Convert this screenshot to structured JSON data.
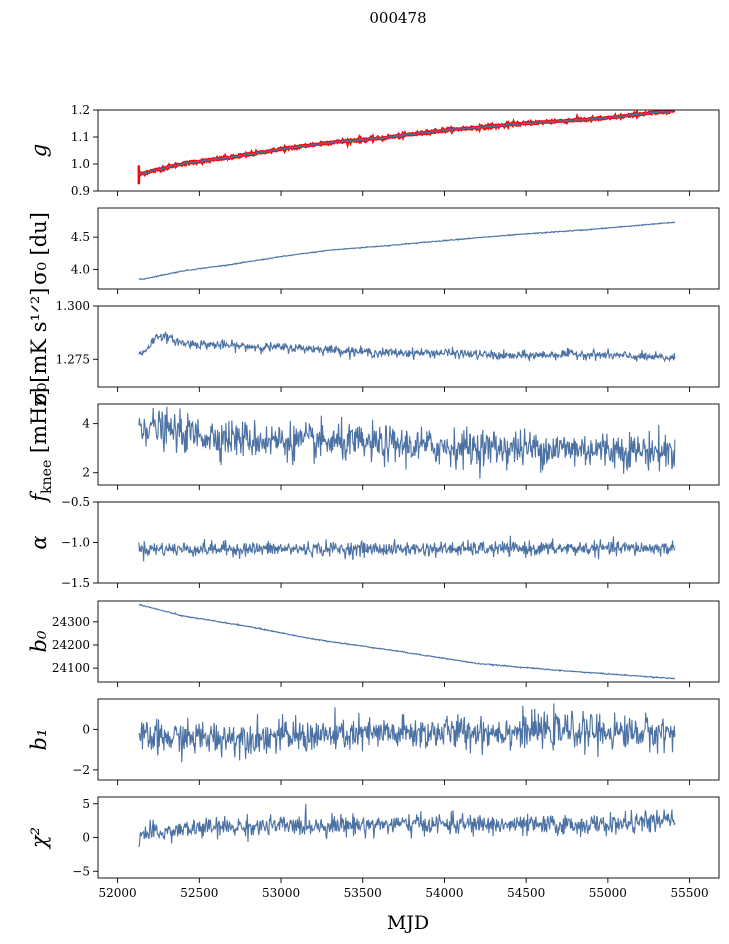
{
  "figure": {
    "suptitle": "000478"
  },
  "chart_data": {
    "type": "line",
    "xlabel": "MJD",
    "xlim": [
      51880,
      55680
    ],
    "xticks": [
      "52000",
      "52500",
      "53000",
      "53500",
      "54000",
      "54500",
      "55000",
      "55500"
    ],
    "xtick_values": [
      52000,
      52500,
      53000,
      53500,
      54000,
      54500,
      55000,
      55500
    ],
    "x_range_data": [
      52130,
      55410
    ],
    "colors": {
      "series": "#4c72a4",
      "highlight": "#ff0000",
      "axis": "#000000"
    },
    "panels": [
      {
        "id": "g",
        "ylabel_base": "g",
        "ylabel_sub": "",
        "ylim": [
          0.9,
          1.2
        ],
        "yticks": [
          "0.9",
          "1.0",
          "1.1",
          "1.2"
        ],
        "ytick_values": [
          0.9,
          1.0,
          1.1,
          1.2
        ],
        "highlight": true,
        "trend": [
          [
            52130,
            0.962
          ],
          [
            52400,
            1.002
          ],
          [
            52700,
            1.025
          ],
          [
            53000,
            1.055
          ],
          [
            53300,
            1.08
          ],
          [
            53600,
            1.095
          ],
          [
            54000,
            1.125
          ],
          [
            54300,
            1.14
          ],
          [
            54600,
            1.155
          ],
          [
            55000,
            1.17
          ],
          [
            55200,
            1.185
          ],
          [
            55410,
            1.198
          ]
        ],
        "noise": 0.002
      },
      {
        "id": "sigma0_du",
        "ylabel_base": "σ₀ [du]",
        "ylabel_sub": "",
        "ylim": [
          3.7,
          4.95
        ],
        "yticks": [
          "4.0",
          "4.5"
        ],
        "ytick_values": [
          4.0,
          4.5
        ],
        "highlight": false,
        "trend": [
          [
            52150,
            3.85
          ],
          [
            52400,
            3.98
          ],
          [
            52700,
            4.08
          ],
          [
            53000,
            4.2
          ],
          [
            53300,
            4.3
          ],
          [
            53700,
            4.38
          ],
          [
            54100,
            4.47
          ],
          [
            54500,
            4.55
          ],
          [
            54900,
            4.62
          ],
          [
            55410,
            4.73
          ]
        ],
        "noise": 0.004
      },
      {
        "id": "sigma0_mk",
        "ylabel_base": "σ₀[mK s¹ᐟ²]",
        "ylabel_sub": "",
        "ylim": [
          1.262,
          1.3
        ],
        "yticks": [
          "1.275",
          "1.300"
        ],
        "ytick_values": [
          1.275,
          1.3
        ],
        "highlight": false,
        "trend": [
          [
            52150,
            1.2776
          ],
          [
            52250,
            1.2865
          ],
          [
            52400,
            1.2825
          ],
          [
            52800,
            1.281
          ],
          [
            53200,
            1.28
          ],
          [
            53600,
            1.278
          ],
          [
            54000,
            1.278
          ],
          [
            54400,
            1.2765
          ],
          [
            54800,
            1.2775
          ],
          [
            55410,
            1.2755
          ]
        ],
        "noise": 0.0011
      },
      {
        "id": "fknee",
        "ylabel_base": "f_knee [mHz]",
        "ylabel_sub": "knee",
        "ylim": [
          1.5,
          4.8
        ],
        "yticks": [
          "2",
          "4"
        ],
        "ytick_values": [
          2,
          4
        ],
        "highlight": false,
        "trend": [
          [
            52150,
            3.95
          ],
          [
            52400,
            3.6
          ],
          [
            52800,
            3.35
          ],
          [
            53200,
            3.25
          ],
          [
            53600,
            3.15
          ],
          [
            54000,
            3.05
          ],
          [
            54500,
            3.0
          ],
          [
            55000,
            2.95
          ],
          [
            55410,
            2.85
          ]
        ],
        "noise": 0.38
      },
      {
        "id": "alpha",
        "ylabel_base": "α",
        "ylabel_sub": "",
        "ylim": [
          -1.5,
          -0.5
        ],
        "yticks": [
          "−1.5",
          "−1.0",
          "−0.5"
        ],
        "ytick_values": [
          -1.5,
          -1.0,
          -0.5
        ],
        "highlight": false,
        "trend": [
          [
            52150,
            -1.08
          ],
          [
            53000,
            -1.08
          ],
          [
            54000,
            -1.08
          ],
          [
            55410,
            -1.07
          ]
        ],
        "noise": 0.045
      },
      {
        "id": "b0",
        "ylabel_base": "b₀",
        "ylabel_sub": "",
        "ylim": [
          24040,
          24390
        ],
        "yticks": [
          "24100",
          "24200",
          "24300"
        ],
        "ytick_values": [
          24100,
          24200,
          24300
        ],
        "highlight": false,
        "trend": [
          [
            52130,
            24375
          ],
          [
            52400,
            24325
          ],
          [
            52800,
            24280
          ],
          [
            53200,
            24225
          ],
          [
            53700,
            24175
          ],
          [
            54200,
            24120
          ],
          [
            54700,
            24090
          ],
          [
            55100,
            24070
          ],
          [
            55410,
            24055
          ]
        ],
        "noise": 1.2
      },
      {
        "id": "b1",
        "ylabel_base": "b₁",
        "ylabel_sub": "",
        "ylim": [
          -2.5,
          1.5
        ],
        "yticks": [
          "−2",
          "0"
        ],
        "ytick_values": [
          -2,
          0
        ],
        "highlight": false,
        "trend": [
          [
            52150,
            -0.45
          ],
          [
            52700,
            -0.4
          ],
          [
            53300,
            -0.3
          ],
          [
            54000,
            -0.15
          ],
          [
            54700,
            -0.05
          ],
          [
            55410,
            -0.2
          ]
        ],
        "noise": 0.42
      },
      {
        "id": "chi2",
        "ylabel_base": "χ²",
        "ylabel_sub": "",
        "ylim": [
          -6,
          6
        ],
        "yticks": [
          "−5",
          "0",
          "5"
        ],
        "ytick_values": [
          -5,
          0,
          5
        ],
        "highlight": false,
        "trend": [
          [
            52150,
            0.4
          ],
          [
            52500,
            1.4
          ],
          [
            53000,
            1.7
          ],
          [
            53500,
            1.9
          ],
          [
            54000,
            2.0
          ],
          [
            54500,
            1.8
          ],
          [
            55000,
            1.9
          ],
          [
            55410,
            2.6
          ]
        ],
        "noise": 0.75
      }
    ]
  }
}
